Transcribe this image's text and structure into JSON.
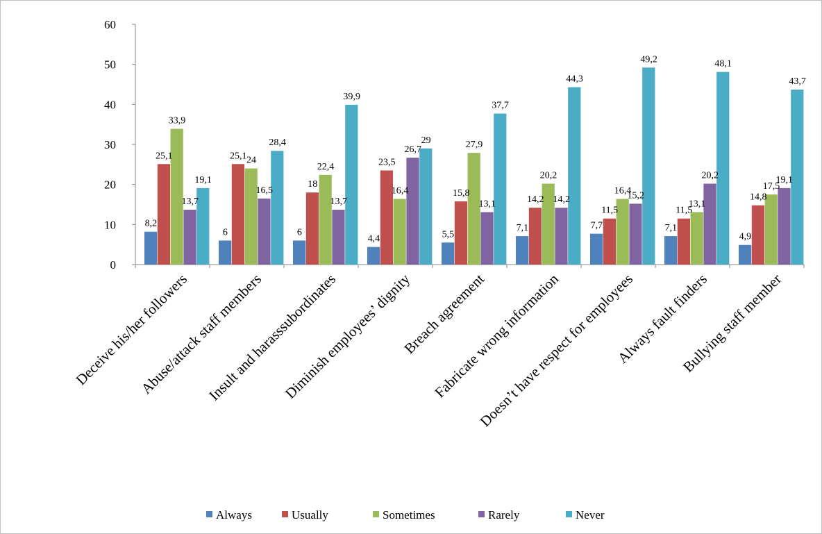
{
  "chart_data": {
    "type": "bar",
    "title": "",
    "xlabel": "",
    "ylabel": "",
    "ylim": [
      0,
      60
    ],
    "yticks": [
      0,
      10,
      20,
      30,
      40,
      50,
      60
    ],
    "grid": false,
    "legend_position": "bottom",
    "categories": [
      "Deceive his/her followers",
      "Abuse/attack staff members",
      "Insult and harasssubordinates",
      "Diminish  employees’  dignity",
      "Breach agreement",
      "Fabricate wrong information",
      "Doesn’t have  respect for employees",
      "Always fault finders",
      "Bullying staff member"
    ],
    "series": [
      {
        "name": "Always",
        "color": "#4f81bd",
        "values": [
          8.2,
          6,
          6,
          4.4,
          5.5,
          7.1,
          7.7,
          7.1,
          4.9
        ],
        "labels": [
          "8,2",
          "6",
          "6",
          "4,4",
          "5,5",
          "7,1",
          "7,7",
          "7,1",
          "4,9"
        ]
      },
      {
        "name": "Usually",
        "color": "#c0504d",
        "values": [
          25.1,
          25.1,
          18,
          23.5,
          15.8,
          14.2,
          11.5,
          11.5,
          14.8
        ],
        "labels": [
          "25,1",
          "25,1",
          "18",
          "23,5",
          "15,8",
          "14,2",
          "11,5",
          "11,5",
          "14,8"
        ]
      },
      {
        "name": "Sometimes",
        "color": "#9bbb59",
        "values": [
          33.9,
          24,
          22.4,
          16.4,
          27.9,
          20.2,
          16.4,
          13.1,
          17.5
        ],
        "labels": [
          "33,9",
          "24",
          "22,4",
          "16,4",
          "27,9",
          "20,2",
          "16,4",
          "13,1",
          "17,5"
        ]
      },
      {
        "name": "Rarely",
        "color": "#8064a2",
        "values": [
          13.7,
          16.5,
          13.7,
          26.7,
          13.1,
          14.2,
          15.2,
          20.2,
          19.1
        ],
        "labels": [
          "13,7",
          "16,5",
          "13,7",
          "26,7",
          "13,1",
          "14,2",
          "15,2",
          "20,2",
          "19,1"
        ]
      },
      {
        "name": "Never",
        "color": "#4bacc6",
        "values": [
          19.1,
          28.4,
          39.9,
          29,
          37.7,
          44.3,
          49.2,
          48.1,
          43.7
        ],
        "labels": [
          "19,1",
          "28,4",
          "39,9",
          "29",
          "37,7",
          "44,3",
          "49,2",
          "48,1",
          "43,7"
        ]
      }
    ]
  }
}
